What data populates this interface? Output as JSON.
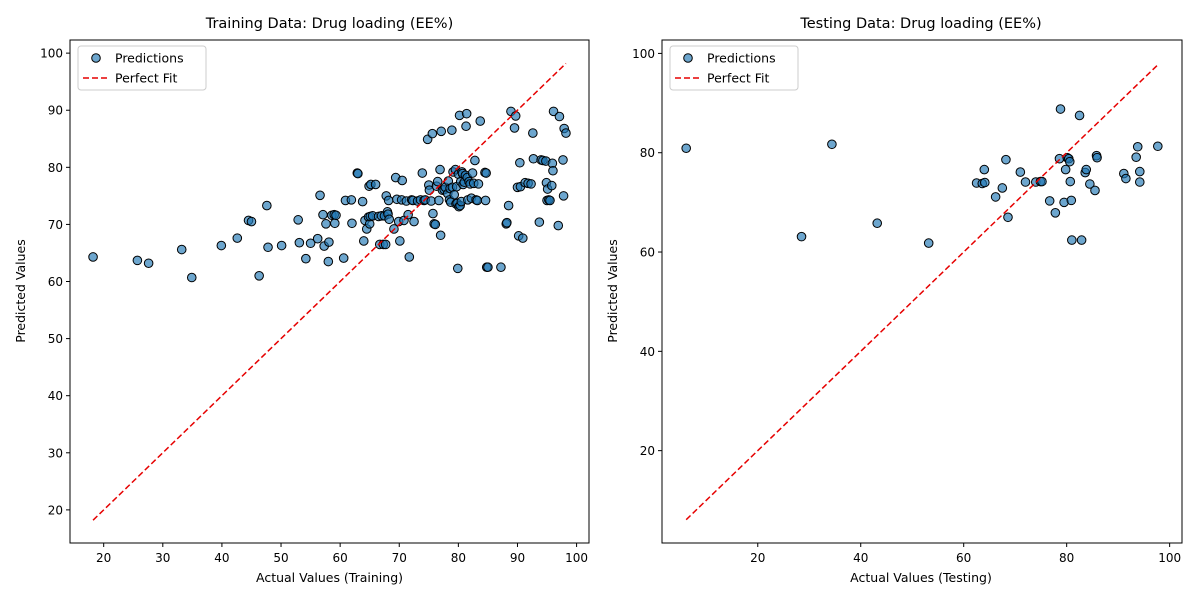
{
  "chart_data": [
    {
      "type": "scatter",
      "title": "Training Data: Drug loading (EE%)",
      "xlabel": "Actual Values (Training)",
      "ylabel": "Predicted Values",
      "xlim": [
        14.3,
        102.1
      ],
      "ylim": [
        14.2,
        102.3
      ],
      "xticks": [
        20,
        30,
        40,
        50,
        60,
        70,
        80,
        90,
        100
      ],
      "yticks": [
        20,
        30,
        40,
        50,
        60,
        70,
        80,
        90,
        100
      ],
      "legend": {
        "position": "top-left",
        "entries": [
          "Predictions",
          "Perfect Fit"
        ]
      },
      "grid": false,
      "series": [
        {
          "name": "Predictions",
          "kind": "scatter",
          "color": "#1f77b4",
          "points": [
            [
              18.2,
              64.3
            ],
            [
              25.7,
              63.7
            ],
            [
              27.6,
              63.2
            ],
            [
              33.2,
              65.6
            ],
            [
              34.9,
              60.7
            ],
            [
              39.9,
              66.3
            ],
            [
              42.6,
              67.6
            ],
            [
              44.5,
              70.7
            ],
            [
              45,
              70.5
            ],
            [
              46.3,
              61
            ],
            [
              47.6,
              73.3
            ],
            [
              47.8,
              66
            ],
            [
              50.1,
              66.3
            ],
            [
              52.9,
              70.8
            ],
            [
              53.1,
              66.8
            ],
            [
              54.2,
              64
            ],
            [
              55,
              66.7
            ],
            [
              56.2,
              67.5
            ],
            [
              56.6,
              75.1
            ],
            [
              57.1,
              71.7
            ],
            [
              57.3,
              66.2
            ],
            [
              57.6,
              70.1
            ],
            [
              58,
              63.5
            ],
            [
              58.1,
              66.9
            ],
            [
              58.6,
              71.6
            ],
            [
              59,
              71.7
            ],
            [
              59.1,
              70.2
            ],
            [
              59.3,
              71.6
            ],
            [
              60.6,
              64.1
            ],
            [
              60.9,
              74.2
            ],
            [
              61.9,
              74.3
            ],
            [
              62,
              70.2
            ],
            [
              62.9,
              79
            ],
            [
              63,
              78.9
            ],
            [
              63.8,
              74
            ],
            [
              64,
              67.1
            ],
            [
              64.2,
              70.7
            ],
            [
              64.5,
              69.2
            ],
            [
              64.8,
              71.3
            ],
            [
              64.9,
              76.7
            ],
            [
              65,
              70.1
            ],
            [
              65.1,
              71.4
            ],
            [
              65.2,
              77
            ],
            [
              65.5,
              71.5
            ],
            [
              66,
              77
            ],
            [
              66.5,
              71.4
            ],
            [
              66.7,
              66.5
            ],
            [
              67,
              71.5
            ],
            [
              67.3,
              66.5
            ],
            [
              67.5,
              71.5
            ],
            [
              67.7,
              66.5
            ],
            [
              67.8,
              75
            ],
            [
              68,
              72.2
            ],
            [
              68.1,
              71.8
            ],
            [
              68.2,
              74.2
            ],
            [
              68.3,
              70.9
            ],
            [
              69.1,
              69.2
            ],
            [
              69.4,
              78.2
            ],
            [
              69.6,
              74.4
            ],
            [
              69.9,
              70.5
            ],
            [
              70.1,
              67.1
            ],
            [
              70.4,
              74.3
            ],
            [
              70.5,
              77.7
            ],
            [
              70.8,
              70.7
            ],
            [
              71.2,
              74.1
            ],
            [
              71.5,
              71.7
            ],
            [
              71.7,
              64.3
            ],
            [
              72.1,
              74.3
            ],
            [
              72.3,
              74.2
            ],
            [
              72.5,
              70.5
            ],
            [
              73.1,
              74.1
            ],
            [
              73.6,
              74.3
            ],
            [
              73.9,
              79
            ],
            [
              74.2,
              74.2
            ],
            [
              74.4,
              74.3
            ],
            [
              74.8,
              84.9
            ],
            [
              75,
              76.9
            ],
            [
              75.1,
              76
            ],
            [
              75.4,
              74.1
            ],
            [
              75.6,
              85.9
            ],
            [
              75.7,
              71.9
            ],
            [
              75.9,
              70.1
            ],
            [
              76.1,
              70
            ],
            [
              76.3,
              76.7
            ],
            [
              76.5,
              77.5
            ],
            [
              76.7,
              74.2
            ],
            [
              76.9,
              79.6
            ],
            [
              77,
              68.1
            ],
            [
              77.1,
              86.3
            ],
            [
              77.3,
              76
            ],
            [
              77.6,
              76.1
            ],
            [
              77.8,
              76.5
            ],
            [
              78.2,
              75.4
            ],
            [
              78.3,
              77.6
            ],
            [
              78.5,
              74.3
            ],
            [
              78.6,
              76.3
            ],
            [
              78.7,
              73.9
            ],
            [
              78.9,
              86.5
            ],
            [
              79,
              76.5
            ],
            [
              79.1,
              79.2
            ],
            [
              79.3,
              75.2
            ],
            [
              79.5,
              79.6
            ],
            [
              79.6,
              73.6
            ],
            [
              79.7,
              76.6
            ],
            [
              79.8,
              73.7
            ],
            [
              79.9,
              62.3
            ],
            [
              80,
              78.8
            ],
            [
              80.1,
              73.1
            ],
            [
              80.2,
              89.1
            ],
            [
              80.3,
              73.3
            ],
            [
              80.4,
              77.5
            ],
            [
              80.5,
              74
            ],
            [
              80.6,
              79.2
            ],
            [
              80.7,
              78.9
            ],
            [
              80.8,
              77
            ],
            [
              81,
              77.4
            ],
            [
              81.2,
              78.6
            ],
            [
              81.3,
              87.2
            ],
            [
              81.4,
              89.4
            ],
            [
              81.5,
              78.2
            ],
            [
              81.6,
              74.3
            ],
            [
              81.8,
              77.5
            ],
            [
              82,
              77.1
            ],
            [
              82.2,
              74.6
            ],
            [
              82.4,
              79
            ],
            [
              82.6,
              77.2
            ],
            [
              82.8,
              81.2
            ],
            [
              83,
              74.3
            ],
            [
              83.2,
              74.2
            ],
            [
              83.4,
              77.1
            ],
            [
              83.7,
              88.1
            ],
            [
              84.5,
              79.1
            ],
            [
              84.6,
              74.2
            ],
            [
              84.7,
              79
            ],
            [
              84.8,
              62.5
            ],
            [
              85,
              62.5
            ],
            [
              87.2,
              62.5
            ],
            [
              88.1,
              70.1
            ],
            [
              88.2,
              70.3
            ],
            [
              88.5,
              73.3
            ],
            [
              88.9,
              89.8
            ],
            [
              89.5,
              86.9
            ],
            [
              89.7,
              89
            ],
            [
              90,
              76.5
            ],
            [
              90.2,
              68
            ],
            [
              90.4,
              80.8
            ],
            [
              90.5,
              76.6
            ],
            [
              90.9,
              67.6
            ],
            [
              91.3,
              77.3
            ],
            [
              91.8,
              77.2
            ],
            [
              92.3,
              77.1
            ],
            [
              92.6,
              86
            ],
            [
              92.7,
              81.5
            ],
            [
              93.7,
              70.4
            ],
            [
              94,
              81.3
            ],
            [
              94.3,
              81.2
            ],
            [
              94.8,
              81.1
            ],
            [
              94.9,
              77.3
            ],
            [
              95,
              74.2
            ],
            [
              95.1,
              76.2
            ],
            [
              95.3,
              74.3
            ],
            [
              95.5,
              74.2
            ],
            [
              95.8,
              76.8
            ],
            [
              95.9,
              80.7
            ],
            [
              96,
              79.4
            ],
            [
              96.1,
              89.8
            ],
            [
              96.9,
              69.8
            ],
            [
              97.1,
              88.9
            ],
            [
              97.7,
              81.3
            ],
            [
              97.8,
              75
            ],
            [
              97.9,
              86.8
            ],
            [
              98.2,
              86
            ]
          ]
        },
        {
          "name": "Perfect Fit",
          "kind": "line",
          "color": "#e60000",
          "points": [
            [
              18.2,
              18.2
            ],
            [
              98.2,
              98.2
            ]
          ]
        }
      ]
    },
    {
      "type": "scatter",
      "title": "Testing Data: Drug loading (EE%)",
      "xlabel": "Actual Values (Testing)",
      "ylabel": "Predicted Values",
      "xlim": [
        1.4,
        102.4
      ],
      "ylim": [
        1.4,
        102.7
      ],
      "xticks": [
        20,
        40,
        60,
        80,
        100
      ],
      "yticks": [
        20,
        40,
        60,
        80,
        100
      ],
      "legend": {
        "position": "top-left",
        "entries": [
          "Predictions",
          "Perfect Fit"
        ]
      },
      "grid": false,
      "series": [
        {
          "name": "Predictions",
          "kind": "scatter",
          "color": "#1f77b4",
          "points": [
            [
              6.1,
              80.9
            ],
            [
              28.5,
              63.1
            ],
            [
              34.4,
              81.7
            ],
            [
              43.2,
              65.8
            ],
            [
              53.2,
              61.8
            ],
            [
              62.5,
              73.9
            ],
            [
              63.6,
              73.8
            ],
            [
              64,
              76.6
            ],
            [
              64.1,
              74
            ],
            [
              66.2,
              71.1
            ],
            [
              67.5,
              72.9
            ],
            [
              68.2,
              78.6
            ],
            [
              68.6,
              67
            ],
            [
              71,
              76.1
            ],
            [
              72,
              74.1
            ],
            [
              74,
              74.1
            ],
            [
              74.9,
              74.2
            ],
            [
              75.2,
              74.2
            ],
            [
              76.7,
              70.3
            ],
            [
              77.8,
              67.9
            ],
            [
              78.6,
              78.8
            ],
            [
              78.8,
              88.8
            ],
            [
              79.5,
              70
            ],
            [
              79.8,
              76.6
            ],
            [
              80.1,
              79
            ],
            [
              80.4,
              78.8
            ],
            [
              80.6,
              78.2
            ],
            [
              80.7,
              74.2
            ],
            [
              80.9,
              70.4
            ],
            [
              81,
              62.4
            ],
            [
              82.5,
              87.5
            ],
            [
              82.9,
              62.4
            ],
            [
              83.6,
              76
            ],
            [
              83.8,
              76.6
            ],
            [
              84.5,
              73.7
            ],
            [
              85.5,
              72.4
            ],
            [
              85.8,
              79.4
            ],
            [
              85.9,
              79
            ],
            [
              91.1,
              75.8
            ],
            [
              91.5,
              74.8
            ],
            [
              93.5,
              79.1
            ],
            [
              93.8,
              81.2
            ],
            [
              94.2,
              76.2
            ],
            [
              94.2,
              74.1
            ],
            [
              97.7,
              81.3
            ]
          ]
        },
        {
          "name": "Perfect Fit",
          "kind": "line",
          "color": "#e60000",
          "points": [
            [
              6.1,
              6.1
            ],
            [
              97.7,
              97.7
            ]
          ]
        }
      ]
    }
  ]
}
